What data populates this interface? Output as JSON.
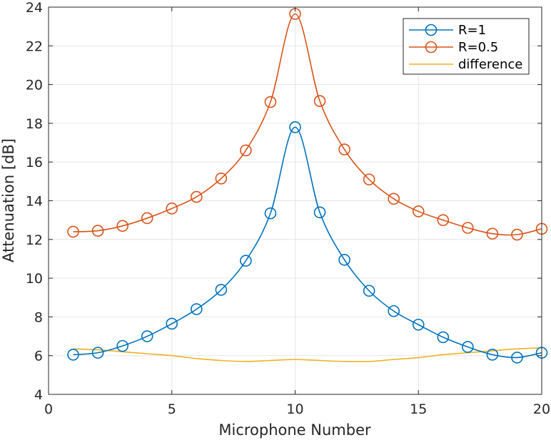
{
  "chart_data": {
    "type": "line",
    "title": "",
    "xlabel": "Microphone Number",
    "ylabel": "Attenuation [dB]",
    "xlim": [
      0,
      20
    ],
    "ylim": [
      4,
      24
    ],
    "xticks": [
      0,
      5,
      10,
      15,
      20
    ],
    "yticks": [
      4,
      6,
      8,
      10,
      12,
      14,
      16,
      18,
      20,
      22,
      24
    ],
    "grid": true,
    "legend_position": "top-right",
    "x": [
      1,
      2,
      3,
      4,
      5,
      6,
      7,
      8,
      9,
      10,
      11,
      12,
      13,
      14,
      15,
      16,
      17,
      18,
      19,
      20
    ],
    "series": [
      {
        "name": "R=1",
        "color": "#0072BD",
        "marker": "circle",
        "values": [
          6.05,
          6.15,
          6.5,
          7.0,
          7.65,
          8.4,
          9.4,
          10.9,
          13.35,
          17.8,
          13.4,
          10.95,
          9.35,
          8.3,
          7.6,
          6.95,
          6.45,
          6.05,
          5.9,
          6.15
        ]
      },
      {
        "name": "R=0.5",
        "color": "#D95319",
        "marker": "circle",
        "values": [
          12.4,
          12.45,
          12.7,
          13.1,
          13.6,
          14.2,
          15.15,
          16.6,
          19.1,
          23.65,
          19.15,
          16.65,
          15.1,
          14.1,
          13.45,
          13.0,
          12.6,
          12.3,
          12.25,
          12.55
        ]
      },
      {
        "name": "difference",
        "color": "#EDB120",
        "marker": "none",
        "values": [
          6.35,
          6.3,
          6.2,
          6.1,
          6.0,
          5.85,
          5.75,
          5.7,
          5.75,
          5.8,
          5.75,
          5.7,
          5.7,
          5.8,
          5.9,
          6.05,
          6.15,
          6.25,
          6.35,
          6.4
        ]
      }
    ]
  }
}
